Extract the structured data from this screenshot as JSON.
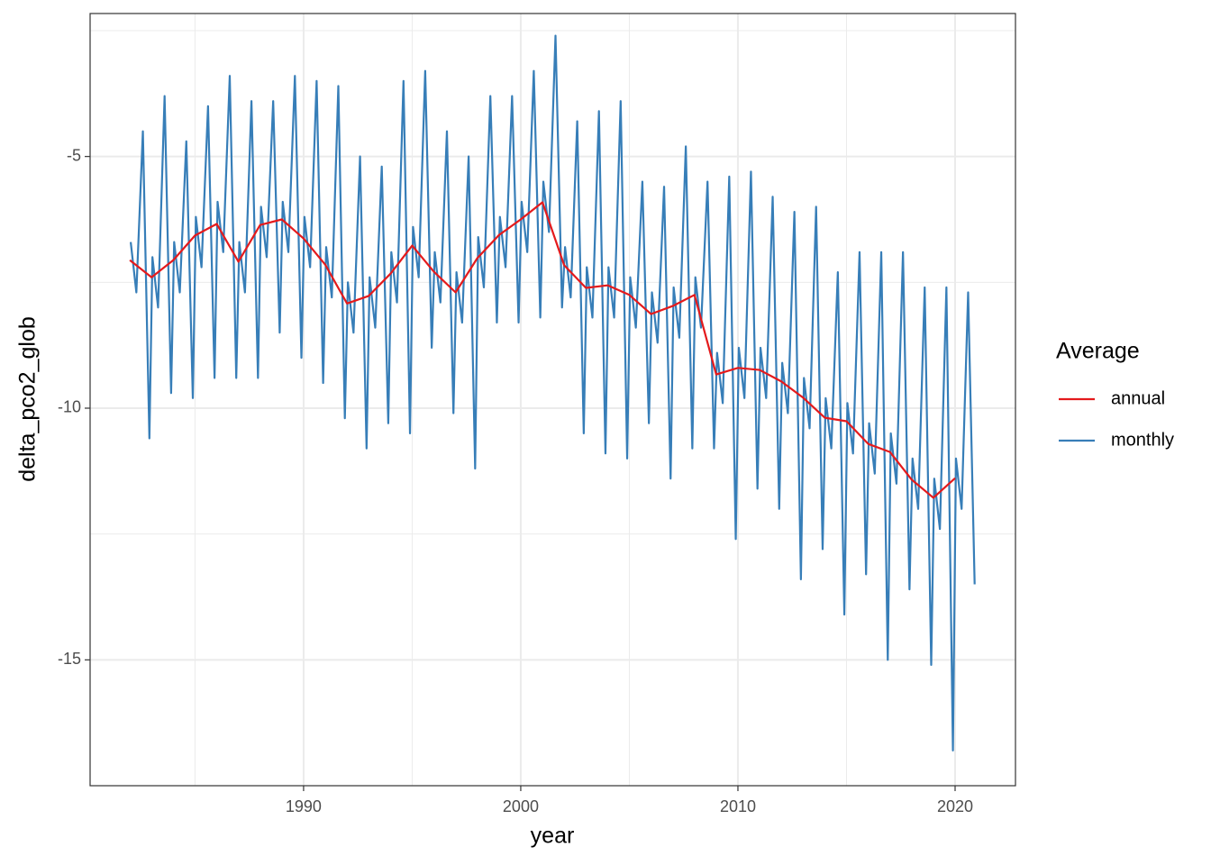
{
  "chart_data": {
    "type": "line",
    "x_label": "year",
    "y_label": "delta_pco2_glob",
    "legend_title": "Average",
    "legend_position": "right",
    "grid": true,
    "xlim": [
      1980.17,
      2022.78
    ],
    "ylim": [
      -17.5,
      -2.16
    ],
    "xticks": [
      1990,
      2000,
      2010,
      2020
    ],
    "yticks": [
      -15,
      -10,
      -5
    ],
    "series": [
      {
        "name": "annual",
        "color": "#e41a1c",
        "x": [
          1982,
          1983,
          1984,
          1985,
          1986,
          1987,
          1988,
          1989,
          1990,
          1991,
          1992,
          1993,
          1994,
          1995,
          1996,
          1997,
          1998,
          1999,
          2000,
          2001,
          2002,
          2003,
          2004,
          2005,
          2006,
          2007,
          2008,
          2009,
          2010,
          2011,
          2012,
          2013,
          2014,
          2015,
          2016,
          2017,
          2018,
          2019,
          2020
        ],
        "values": [
          -7.06,
          -7.4,
          -7.06,
          -6.57,
          -6.34,
          -7.09,
          -6.36,
          -6.25,
          -6.63,
          -7.15,
          -7.92,
          -7.77,
          -7.33,
          -6.77,
          -7.29,
          -7.7,
          -7.02,
          -6.56,
          -6.25,
          -5.91,
          -7.16,
          -7.61,
          -7.56,
          -7.75,
          -8.13,
          -7.97,
          -7.75,
          -9.33,
          -9.2,
          -9.24,
          -9.47,
          -9.79,
          -10.19,
          -10.26,
          -10.71,
          -10.87,
          -11.42,
          -11.78,
          -11.39
        ]
      },
      {
        "name": "monthly",
        "color": "#377eb8",
        "x": [
          1982.04,
          1982.3,
          1982.6,
          1982.9,
          1983.04,
          1983.3,
          1983.6,
          1983.9,
          1984.04,
          1984.3,
          1984.6,
          1984.9,
          1985.04,
          1985.3,
          1985.6,
          1985.9,
          1986.04,
          1986.3,
          1986.6,
          1986.9,
          1987.04,
          1987.3,
          1987.6,
          1987.9,
          1988.04,
          1988.3,
          1988.6,
          1988.9,
          1989.04,
          1989.3,
          1989.6,
          1989.9,
          1990.04,
          1990.3,
          1990.6,
          1990.9,
          1991.04,
          1991.3,
          1991.6,
          1991.9,
          1992.04,
          1992.3,
          1992.6,
          1992.9,
          1993.04,
          1993.3,
          1993.6,
          1993.9,
          1994.04,
          1994.3,
          1994.6,
          1994.9,
          1995.04,
          1995.3,
          1995.6,
          1995.9,
          1996.04,
          1996.3,
          1996.6,
          1996.9,
          1997.04,
          1997.3,
          1997.6,
          1997.9,
          1998.04,
          1998.3,
          1998.6,
          1998.9,
          1999.04,
          1999.3,
          1999.6,
          1999.9,
          2000.04,
          2000.3,
          2000.6,
          2000.9,
          2001.04,
          2001.3,
          2001.6,
          2001.9,
          2002.04,
          2002.3,
          2002.6,
          2002.9,
          2003.04,
          2003.3,
          2003.6,
          2003.9,
          2004.04,
          2004.3,
          2004.6,
          2004.9,
          2005.04,
          2005.3,
          2005.6,
          2005.9,
          2006.04,
          2006.3,
          2006.6,
          2006.9,
          2007.04,
          2007.3,
          2007.6,
          2007.9,
          2008.04,
          2008.3,
          2008.6,
          2008.9,
          2009.04,
          2009.3,
          2009.6,
          2009.9,
          2010.04,
          2010.3,
          2010.6,
          2010.9,
          2011.04,
          2011.3,
          2011.6,
          2011.9,
          2012.04,
          2012.3,
          2012.6,
          2012.9,
          2013.04,
          2013.3,
          2013.6,
          2013.9,
          2014.04,
          2014.3,
          2014.6,
          2014.9,
          2015.04,
          2015.3,
          2015.6,
          2015.9,
          2016.04,
          2016.3,
          2016.6,
          2016.9,
          2017.04,
          2017.3,
          2017.6,
          2017.9,
          2018.04,
          2018.3,
          2018.6,
          2018.9,
          2019.04,
          2019.3,
          2019.6,
          2019.9,
          2020.04,
          2020.3,
          2020.6,
          2020.9
        ],
        "values": [
          -6.7,
          -7.7,
          -4.5,
          -10.6,
          -7.0,
          -8.0,
          -3.8,
          -9.7,
          -6.7,
          -7.7,
          -4.7,
          -9.8,
          -6.2,
          -7.2,
          -4.0,
          -9.4,
          -5.9,
          -6.9,
          -3.4,
          -9.4,
          -6.7,
          -7.7,
          -3.9,
          -9.4,
          -6.0,
          -7.0,
          -3.9,
          -8.5,
          -5.9,
          -6.9,
          -3.4,
          -9.0,
          -6.2,
          -7.2,
          -3.5,
          -9.5,
          -6.8,
          -7.8,
          -3.6,
          -10.2,
          -7.5,
          -8.5,
          -5.0,
          -10.8,
          -7.4,
          -8.4,
          -5.2,
          -10.3,
          -6.9,
          -7.9,
          -3.5,
          -10.5,
          -6.4,
          -7.4,
          -3.3,
          -8.8,
          -6.9,
          -7.9,
          -4.5,
          -10.1,
          -7.3,
          -8.3,
          -5.0,
          -11.2,
          -6.6,
          -7.6,
          -3.8,
          -8.3,
          -6.2,
          -7.2,
          -3.8,
          -8.3,
          -5.9,
          -6.9,
          -3.3,
          -8.2,
          -5.5,
          -6.5,
          -2.6,
          -8.0,
          -6.8,
          -7.8,
          -4.3,
          -10.5,
          -7.2,
          -8.2,
          -4.1,
          -10.9,
          -7.2,
          -8.2,
          -3.9,
          -11.0,
          -7.4,
          -8.4,
          -5.5,
          -10.3,
          -7.7,
          -8.7,
          -5.6,
          -11.4,
          -7.6,
          -8.6,
          -4.8,
          -10.8,
          -7.4,
          -8.4,
          -5.5,
          -10.8,
          -8.9,
          -9.9,
          -5.4,
          -12.6,
          -8.8,
          -9.8,
          -5.3,
          -11.6,
          -8.8,
          -9.8,
          -5.8,
          -12.0,
          -9.1,
          -10.1,
          -6.1,
          -13.4,
          -9.4,
          -10.4,
          -6.0,
          -12.8,
          -9.8,
          -10.8,
          -7.3,
          -14.1,
          -9.9,
          -10.9,
          -6.9,
          -13.3,
          -10.3,
          -11.3,
          -6.9,
          -15.0,
          -10.5,
          -11.5,
          -6.9,
          -13.6,
          -11.0,
          -12.0,
          -7.6,
          -15.1,
          -11.4,
          -12.4,
          -7.6,
          -16.8,
          -11.0,
          -12.0,
          -7.7,
          -13.5
        ]
      }
    ]
  }
}
